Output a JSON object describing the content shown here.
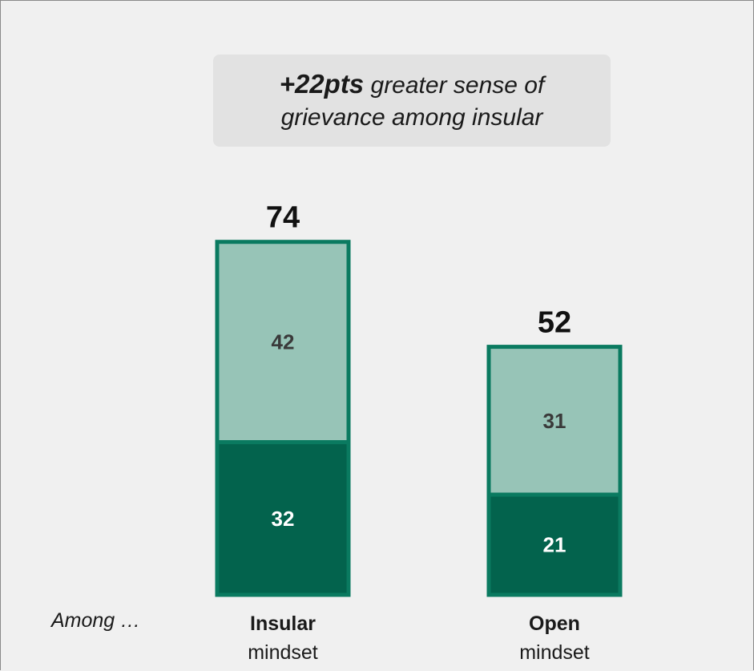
{
  "callout": {
    "highlight": "+22pts",
    "line1_rest": " greater sense of",
    "line2": "grievance among insular"
  },
  "among_label": "Among …",
  "colors": {
    "bottom_segment": "#03634d",
    "top_segment": "#97c4b7",
    "border": "#0a7a60",
    "bottom_label": "#ffffff",
    "top_label": "#3a3a3a",
    "total_label": "#111111"
  },
  "chart_data": {
    "type": "bar",
    "stacked": true,
    "categories": [
      "Insular mindset",
      "Open mindset"
    ],
    "category_labels": [
      {
        "bold": "Insular",
        "sub": "mindset"
      },
      {
        "bold": "Open",
        "sub": "mindset"
      }
    ],
    "series": [
      {
        "values": [
          32,
          21
        ]
      },
      {
        "values": [
          42,
          31
        ]
      }
    ],
    "totals": [
      74,
      52
    ],
    "title": "",
    "xlabel": "",
    "ylabel": ""
  }
}
